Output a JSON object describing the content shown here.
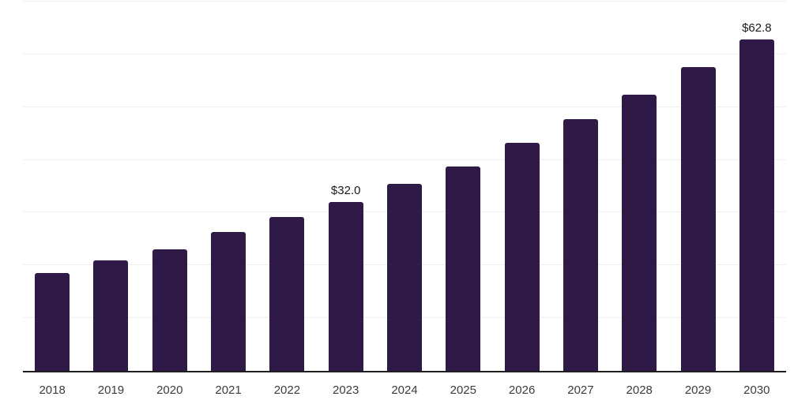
{
  "chart_data": {
    "type": "bar",
    "title": "",
    "xlabel": "",
    "ylabel": "",
    "categories": [
      "2018",
      "2019",
      "2020",
      "2021",
      "2022",
      "2023",
      "2024",
      "2025",
      "2026",
      "2027",
      "2028",
      "2029",
      "2030"
    ],
    "values": [
      18.5,
      21.0,
      23.0,
      26.3,
      29.1,
      32.0,
      35.4,
      38.8,
      43.3,
      47.7,
      52.4,
      57.6,
      62.8
    ],
    "bar_labels": {
      "2023": "$32.0",
      "2030": "$62.8"
    },
    "ylim": [
      0,
      70
    ],
    "grid_step": 10,
    "grid": "horizontal",
    "y_tick_labels_visible": false,
    "legend_position": "none",
    "colors": {
      "bar": "#2f1a47",
      "background": "#ffffff",
      "gridline": "#f0f0f0",
      "axis_line": "#1f1f1f",
      "tick_label": "#3c3c3c",
      "data_label": "#1a1a1a"
    }
  }
}
